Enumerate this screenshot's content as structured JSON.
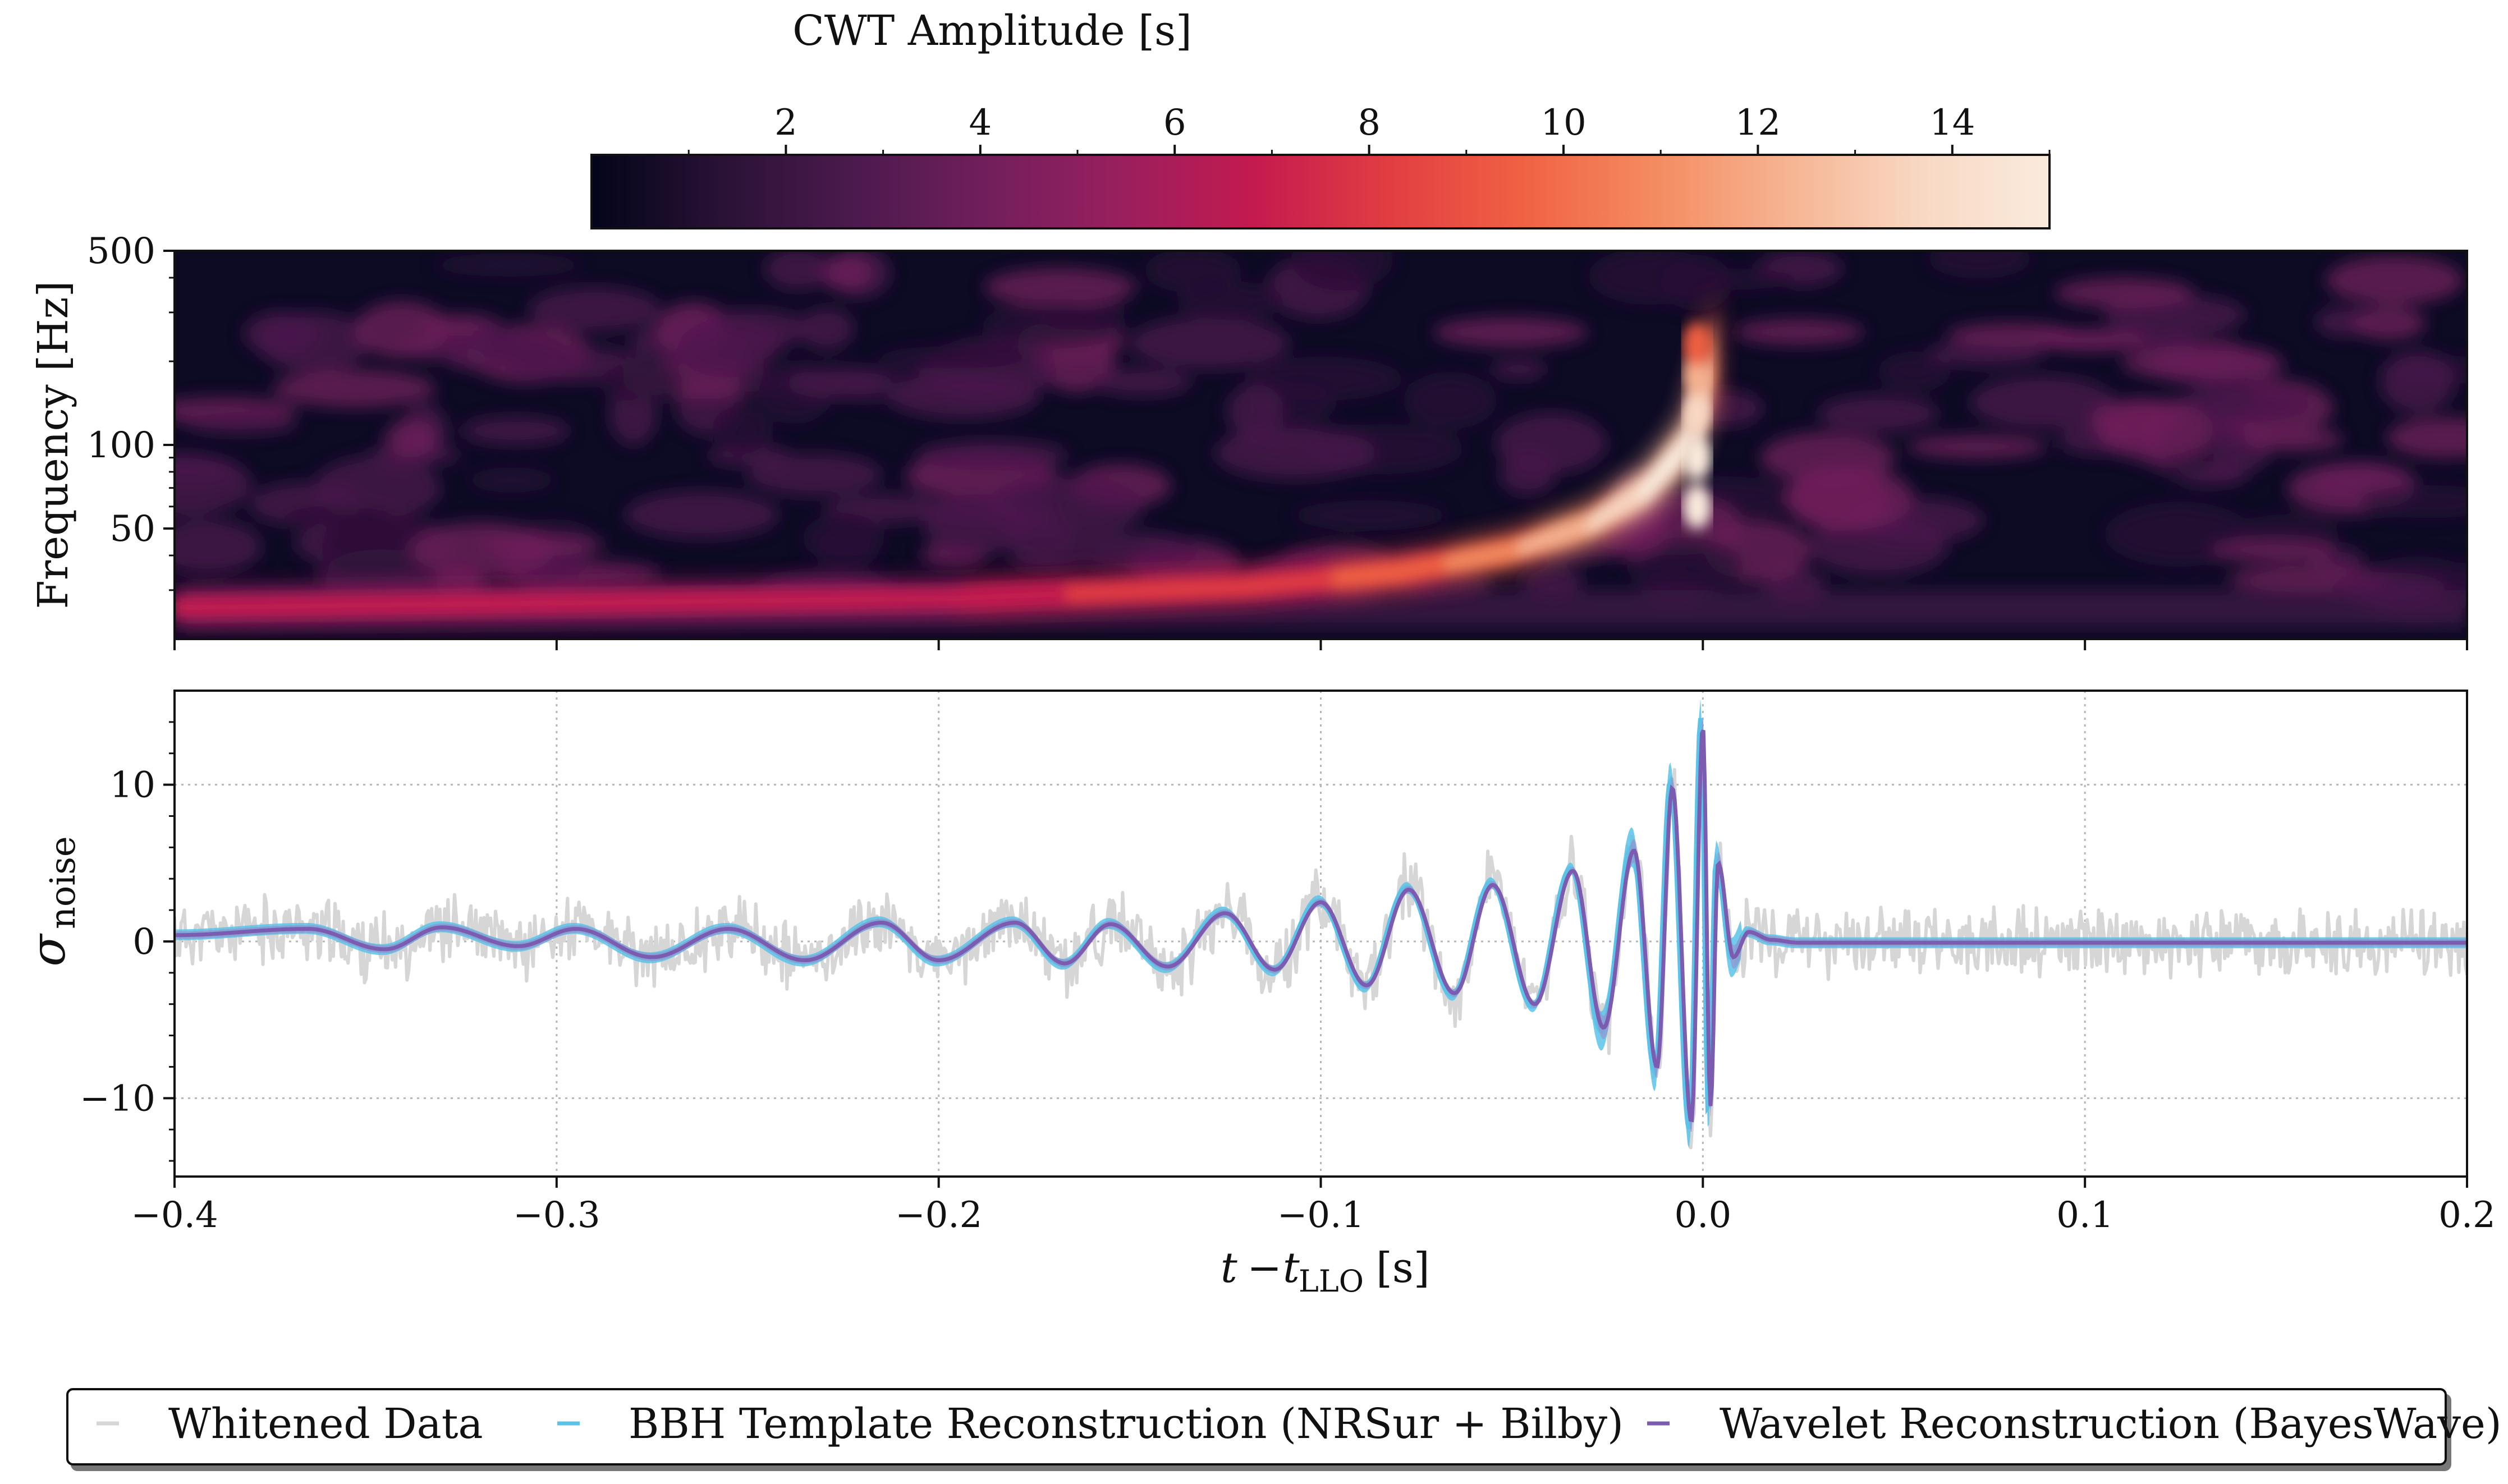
{
  "colorbar": {
    "label": "CWT Amplitude [s]",
    "ticks": [
      2,
      4,
      6,
      8,
      10,
      12,
      14
    ],
    "tick_labels": [
      "2",
      "4",
      "6",
      "8",
      "10",
      "12",
      "14"
    ],
    "range": [
      0,
      15
    ],
    "colormap": "rocket",
    "colormap_stops": [
      "#03051a",
      "#2a1235",
      "#4c1a4e",
      "#721f5c",
      "#9a1f5e",
      "#c41a4f",
      "#e13d42",
      "#f06043",
      "#f48a5f",
      "#f6b391",
      "#f8d7c2",
      "#faebdd"
    ]
  },
  "chart_data": [
    {
      "type": "heatmap",
      "xlabel": "",
      "ylabel": "Frequency [Hz]",
      "y_scale": "log",
      "xlim": [
        -0.4,
        0.2
      ],
      "ylim": [
        20,
        500
      ],
      "y_ticks": [
        50,
        100,
        500
      ],
      "y_tick_labels": [
        "50",
        "100",
        "500"
      ],
      "x_ticks": [
        -0.4,
        -0.3,
        -0.2,
        -0.1,
        0.0,
        0.1,
        0.2
      ],
      "description_track": [
        {
          "t": -0.4,
          "f": 26,
          "amp": 6.5
        },
        {
          "t": -0.3,
          "f": 27,
          "amp": 6.8
        },
        {
          "t": -0.2,
          "f": 28,
          "amp": 7.2
        },
        {
          "t": -0.12,
          "f": 31,
          "amp": 8.0
        },
        {
          "t": -0.08,
          "f": 35,
          "amp": 9.5
        },
        {
          "t": -0.05,
          "f": 42,
          "amp": 11.5
        },
        {
          "t": -0.03,
          "f": 52,
          "amp": 13.0
        },
        {
          "t": -0.015,
          "f": 70,
          "amp": 14.5
        },
        {
          "t": -0.005,
          "f": 100,
          "amp": 15.0
        },
        {
          "t": 0.0,
          "f": 160,
          "amp": 13.0
        },
        {
          "t": 0.003,
          "f": 230,
          "amp": 10.0
        }
      ]
    },
    {
      "type": "line",
      "xlabel": "t − t_LLO [s]",
      "ylabel": "σ_noise",
      "xlim": [
        -0.4,
        0.2
      ],
      "ylim": [
        -15,
        16
      ],
      "x_ticks": [
        -0.4,
        -0.3,
        -0.2,
        -0.1,
        0.0,
        0.1,
        0.2
      ],
      "x_tick_labels": [
        "−0.4",
        "−0.3",
        "−0.2",
        "−0.1",
        "0.0",
        "0.1",
        "0.2"
      ],
      "y_ticks": [
        -10,
        0,
        10
      ],
      "y_tick_labels": [
        "−10",
        "0",
        "10"
      ],
      "grid": true,
      "series": [
        {
          "name": "Whitened Data",
          "color": "#d6d6d6"
        },
        {
          "name": "BBH Template Reconstruction (NRSur + Bilby)",
          "color": "#5bc3e8"
        },
        {
          "name": "Wavelet Reconstruction (BayesWave)",
          "color": "#7b5cb0"
        }
      ],
      "waveform_peaks": [
        {
          "t": -0.4,
          "y": 0.4
        },
        {
          "t": -0.365,
          "y": 0.8
        },
        {
          "t": -0.33,
          "y": 0.9
        },
        {
          "t": -0.295,
          "y": 0.8
        },
        {
          "t": -0.255,
          "y": 0.8
        },
        {
          "t": -0.215,
          "y": 1.2
        },
        {
          "t": -0.18,
          "y": 1.2
        },
        {
          "t": -0.155,
          "y": 1.1
        },
        {
          "t": -0.125,
          "y": 1.8
        },
        {
          "t": -0.1,
          "y": 2.5
        },
        {
          "t": -0.077,
          "y": 3.3
        },
        {
          "t": -0.055,
          "y": 3.6
        },
        {
          "t": -0.034,
          "y": 4.5
        },
        {
          "t": -0.018,
          "y": 5.8
        },
        {
          "t": -0.008,
          "y": 9.8
        },
        {
          "t": 0.0,
          "y": 13.7
        },
        {
          "t": 0.004,
          "y": 5.0
        }
      ],
      "waveform_troughs": [
        {
          "t": -0.345,
          "y": -0.5
        },
        {
          "t": -0.31,
          "y": -0.3
        },
        {
          "t": -0.275,
          "y": -1.0
        },
        {
          "t": -0.235,
          "y": -1.2
        },
        {
          "t": -0.2,
          "y": -1.2
        },
        {
          "t": -0.167,
          "y": -1.4
        },
        {
          "t": -0.14,
          "y": -1.6
        },
        {
          "t": -0.112,
          "y": -1.8
        },
        {
          "t": -0.088,
          "y": -2.8
        },
        {
          "t": -0.065,
          "y": -3.3
        },
        {
          "t": -0.044,
          "y": -4.0
        },
        {
          "t": -0.026,
          "y": -5.5
        },
        {
          "t": -0.012,
          "y": -8.0
        },
        {
          "t": -0.003,
          "y": -11.5
        },
        {
          "t": 0.002,
          "y": -10.5
        }
      ]
    }
  ],
  "legend": {
    "items": [
      {
        "label": "Whitened Data",
        "color": "#d6d6d6"
      },
      {
        "label": "BBH Template Reconstruction (NRSur + Bilby)",
        "color": "#5bc3e8"
      },
      {
        "label": "Wavelet Reconstruction (BayesWave)",
        "color": "#7b5cb0"
      }
    ]
  }
}
